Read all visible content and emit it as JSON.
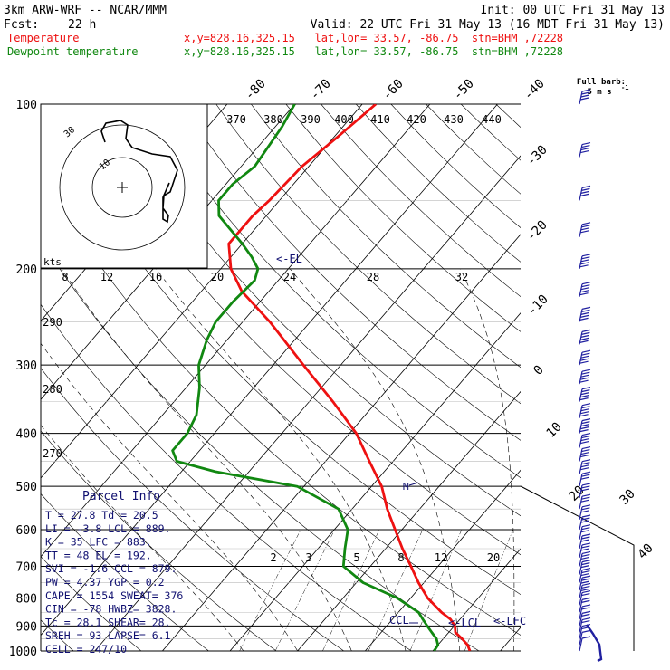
{
  "header": {
    "model": "3km ARW-WRF -- NCAR/MMM",
    "init": "Init: 00 UTC Fri 31 May 13",
    "fcst_label": "Fcst:",
    "fcst_value": "22 h",
    "valid": "Valid: 22 UTC Fri 31 May 13 (16 MDT Fri 31 May 13)",
    "temp_label": "Temperature",
    "temp_loc": "x,y=828.16,325.15   lat,lon= 33.57, -86.75  stn=BHM ,72228",
    "dew_label": "Dewpoint temperature",
    "dew_loc": "x,y=828.16,325.15   lat,lon= 33.57, -86.75  stn=BHM ,72228",
    "barb_title": "Full barb:",
    "barb_unit": "5 m s"
  },
  "colors": {
    "temperature": "#ee1111",
    "dewpoint": "#118811",
    "parcel": "#101070",
    "barbs": "#2020a0",
    "text": "#000000"
  },
  "chart_data": {
    "type": "line",
    "diagram": "skew-T log-p",
    "pressure_levels_hpa": [
      100,
      200,
      300,
      400,
      500,
      600,
      700,
      800,
      900,
      1000
    ],
    "pressure_labels": [
      "100",
      "200",
      "300",
      "400",
      "500",
      "600",
      "700",
      "800",
      "900",
      "1000"
    ],
    "plim_hpa": [
      100,
      1000
    ],
    "temp_range_at_1000hpa_c": [
      -38,
      33
    ],
    "isotherm_labels_upper": [
      "-80",
      "-70",
      "-60",
      "-50",
      "-40"
    ],
    "isotherm_labels_right": [
      "-30",
      "-20",
      "-10",
      "0",
      "10",
      "20",
      "30",
      "40"
    ],
    "theta_labels": [
      "370",
      "380",
      "390",
      "400",
      "410",
      "420",
      "430",
      "440"
    ],
    "mixing_ratio_labels": [
      "2",
      "3",
      "5",
      "8",
      "12",
      "20"
    ],
    "hodograph": {
      "unit_label": "kts",
      "ring_labels": [
        "8",
        "12",
        "16",
        "20",
        "24",
        "28",
        "32"
      ],
      "inner_ring_labels": [
        "30",
        "10"
      ]
    },
    "theta_scale_labels": [
      "290",
      "280",
      "270"
    ],
    "series": [
      {
        "name": "Temperature",
        "points": [
          [
            1000,
            25.5
          ],
          [
            975,
            24.4
          ],
          [
            950,
            22.8
          ],
          [
            925,
            21.0
          ],
          [
            900,
            20.1
          ],
          [
            875,
            18.6
          ],
          [
            850,
            16.4
          ],
          [
            800,
            12.5
          ],
          [
            750,
            9.2
          ],
          [
            700,
            6.0
          ],
          [
            650,
            2.5
          ],
          [
            600,
            -1.0
          ],
          [
            550,
            -4.8
          ],
          [
            500,
            -8.5
          ],
          [
            450,
            -13.5
          ],
          [
            400,
            -19.0
          ],
          [
            350,
            -26.5
          ],
          [
            300,
            -35.5
          ],
          [
            250,
            -46.0
          ],
          [
            220,
            -54.0
          ],
          [
            200,
            -58.5
          ],
          [
            180,
            -62.0
          ],
          [
            160,
            -62.0
          ],
          [
            150,
            -61.5
          ],
          [
            130,
            -61.0
          ],
          [
            115,
            -59.5
          ],
          [
            100,
            -58.0
          ]
        ]
      },
      {
        "name": "Dewpoint temperature",
        "points": [
          [
            1000,
            20.2
          ],
          [
            975,
            20.0
          ],
          [
            950,
            19.0
          ],
          [
            925,
            17.5
          ],
          [
            900,
            16.0
          ],
          [
            875,
            14.5
          ],
          [
            850,
            13.0
          ],
          [
            800,
            8.0
          ],
          [
            750,
            1.0
          ],
          [
            700,
            -4.0
          ],
          [
            650,
            -6.0
          ],
          [
            600,
            -8.0
          ],
          [
            550,
            -12.0
          ],
          [
            500,
            -21.0
          ],
          [
            470,
            -35.0
          ],
          [
            450,
            -42.0
          ],
          [
            430,
            -44.0
          ],
          [
            400,
            -44.0
          ],
          [
            370,
            -45.0
          ],
          [
            330,
            -48.0
          ],
          [
            300,
            -51.0
          ],
          [
            270,
            -53.0
          ],
          [
            250,
            -54.0
          ],
          [
            230,
            -54.0
          ],
          [
            210,
            -53.5
          ],
          [
            200,
            -54.5
          ],
          [
            190,
            -57.0
          ],
          [
            180,
            -60.0
          ],
          [
            160,
            -67.0
          ],
          [
            150,
            -69.0
          ],
          [
            140,
            -69.0
          ],
          [
            130,
            -68.0
          ],
          [
            110,
            -69.0
          ],
          [
            100,
            -70.0
          ]
        ]
      }
    ],
    "annotations": [
      {
        "text": "<-EL",
        "p_hpa": 192
      },
      {
        "text": "CCL",
        "p_hpa": 879
      },
      {
        "text": "<-LCL",
        "p_hpa": 889
      },
      {
        "text": "<-LFC",
        "p_hpa": 883
      }
    ],
    "wind_barbs": {
      "pressures_hpa": [
        100,
        125,
        150,
        175,
        200,
        225,
        250,
        275,
        300,
        325,
        350,
        375,
        400,
        425,
        450,
        475,
        500,
        525,
        550,
        575,
        600,
        625,
        650,
        675,
        700,
        725,
        750,
        775,
        800,
        825,
        850,
        875,
        900,
        925,
        950,
        975,
        1000
      ],
      "speed_ms": [
        20,
        20,
        20,
        20,
        25,
        25,
        25,
        25,
        25,
        25,
        25,
        25,
        25,
        20,
        20,
        20,
        15,
        15,
        15,
        15,
        15,
        15,
        15,
        15,
        15,
        15,
        15,
        15,
        15,
        10,
        10,
        10,
        10,
        10,
        10,
        5,
        5
      ],
      "direction_deg": [
        250,
        250,
        250,
        250,
        250,
        250,
        250,
        250,
        250,
        250,
        250,
        250,
        250,
        250,
        250,
        250,
        250,
        250,
        250,
        250,
        250,
        250,
        250,
        250,
        250,
        250,
        250,
        250,
        260,
        260,
        260,
        270,
        270,
        270,
        280,
        280,
        290
      ]
    }
  },
  "parcel_info": {
    "title": "Parcel Info",
    "rows": [
      "T  =   27.8  Td =  20.5",
      "LI =   -3.8  LCL =  889.",
      "K  =     35  LFC =  883.",
      "TT =     48  EL  =  192.",
      "SVI =  -1.6  CCL =  879.",
      "PW =   4.37  YGP =   0.2",
      "CAPE =  1554  SWEAT=  376",
      "CIN =   -78  HWBZ= 3828.",
      "Tc =   28.1  SHEAR=  28.",
      "SREH =    93  LAPSE=   6.1",
      "CELL = 247/10"
    ]
  }
}
